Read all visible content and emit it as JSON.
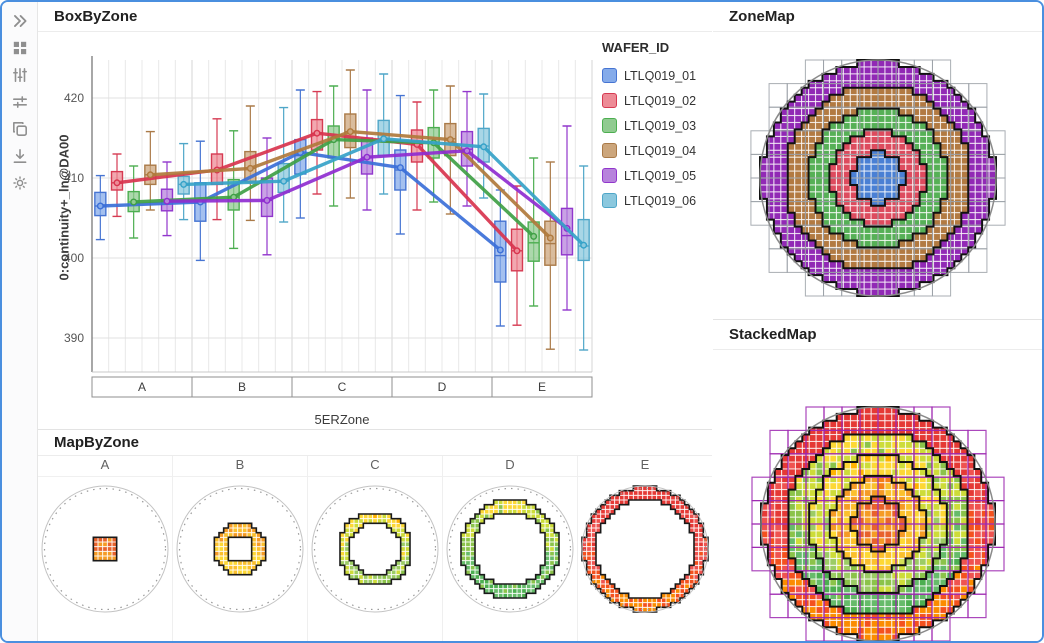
{
  "window": {
    "border_color": "#4a8fdf"
  },
  "toolbar": {
    "icons": [
      "expand",
      "dashboard-grid",
      "sliders-vertical",
      "sliders-horizontal",
      "copy",
      "download",
      "settings-gear"
    ]
  },
  "panels": {
    "box_by_zone": {
      "title": "BoxByZone"
    },
    "map_by_zone": {
      "title": "MapByZone"
    },
    "zone_map": {
      "title": "ZoneMap"
    },
    "stacked_map": {
      "title": "StackedMap"
    }
  },
  "chart_data": [
    {
      "id": "box_by_zone",
      "type": "box",
      "title": "BoxByZone",
      "xlabel": "5ERZone",
      "ylabel": "0:continuity+_ln@DA00",
      "categories": [
        "A",
        "B",
        "C",
        "D",
        "E"
      ],
      "yticks": [
        390,
        400,
        410,
        420
      ],
      "ylim": [
        385.5,
        425.5
      ],
      "grid": true,
      "legend_title": "WAFER_ID",
      "legend_position": "right",
      "series": [
        {
          "name": "LTLQ019_01",
          "fill": "#85ABEA",
          "stroke": "#4674D2",
          "line": "#3B6FD8",
          "boxes": [
            [
              402.3,
              405.3,
              406.5,
              408.2,
              410.3
            ],
            [
              399.7,
              404.6,
              406.9,
              409.4,
              414.6
            ],
            [
              405.0,
              410.5,
              412.8,
              414.8,
              421.0
            ],
            [
              403.0,
              408.5,
              411.0,
              413.5,
              420.3
            ],
            [
              391.5,
              397.0,
              400.3,
              404.6,
              408.5
            ]
          ],
          "means": [
            406.5,
            407.0,
            413.2,
            411.3,
            401.0
          ]
        },
        {
          "name": "LTLQ019_02",
          "fill": "#ED8B96",
          "stroke": "#D63A52",
          "line": "#D8344E",
          "boxes": [
            [
              405.2,
              408.5,
              409.4,
              410.8,
              413.0
            ],
            [
              404.8,
              409.2,
              410.9,
              413.0,
              417.4
            ],
            [
              408.0,
              413.5,
              415.6,
              417.3,
              420.8
            ],
            [
              406.0,
              412.0,
              414.2,
              416.0,
              419.5
            ],
            [
              391.6,
              398.4,
              400.9,
              403.6,
              409.0
            ]
          ],
          "means": [
            409.4,
            411.0,
            415.6,
            414.2,
            400.9
          ]
        },
        {
          "name": "LTLQ019_03",
          "fill": "#90CB90",
          "stroke": "#4CAE50",
          "line": "#3FA045",
          "boxes": [
            [
              402.5,
              405.8,
              407.0,
              408.3,
              411.5
            ],
            [
              401.2,
              406.0,
              407.6,
              409.8,
              415.9
            ],
            [
              406.5,
              412.5,
              414.8,
              416.5,
              421.5
            ],
            [
              407.0,
              412.5,
              414.5,
              416.3,
              421.0
            ],
            [
              394.0,
              399.6,
              401.9,
              404.5,
              412.5
            ]
          ],
          "means": [
            407.0,
            407.6,
            414.8,
            414.4,
            402.7
          ]
        },
        {
          "name": "LTLQ019_04",
          "fill": "#CCA67C",
          "stroke": "#AA7A48",
          "line": "#B0793C",
          "boxes": [
            [
              406.0,
              409.2,
              410.4,
              411.6,
              415.8
            ],
            [
              404.7,
              409.5,
              411.2,
              413.3,
              419.0
            ],
            [
              407.5,
              413.8,
              415.8,
              418.0,
              423.5
            ],
            [
              405.5,
              412.8,
              414.9,
              416.8,
              421.5
            ],
            [
              388.6,
              399.1,
              401.8,
              404.6,
              412.0
            ]
          ],
          "means": [
            410.4,
            411.2,
            415.8,
            414.8,
            402.5
          ]
        },
        {
          "name": "LTLQ019_05",
          "fill": "#B783DC",
          "stroke": "#9136CC",
          "line": "#8F2CD0",
          "boxes": [
            [
              402.8,
              405.9,
              407.1,
              408.6,
              412.0
            ],
            [
              400.4,
              405.2,
              407.2,
              410.0,
              415.0
            ],
            [
              406.0,
              410.5,
              412.6,
              415.0,
              421.0
            ],
            [
              406.5,
              411.5,
              413.6,
              415.8,
              420.8
            ],
            [
              393.5,
              400.4,
              402.8,
              406.2,
              416.5
            ]
          ],
          "means": [
            407.1,
            407.2,
            412.6,
            413.4,
            403.7
          ]
        },
        {
          "name": "LTLQ019_06",
          "fill": "#8BC8DE",
          "stroke": "#4FA6C8",
          "line": "#35A2C8",
          "boxes": [
            [
              404.8,
              408.0,
              409.2,
              410.2,
              414.3
            ],
            [
              404.5,
              408.2,
              409.6,
              411.8,
              418.8
            ],
            [
              408.0,
              412.8,
              414.9,
              417.2,
              423.0
            ],
            [
              407.5,
              412.0,
              414.0,
              416.2,
              420.5
            ],
            [
              388.5,
              399.7,
              401.5,
              404.8,
              411.5
            ]
          ],
          "means": [
            409.2,
            409.6,
            414.9,
            413.9,
            401.6
          ]
        }
      ]
    },
    {
      "id": "zone_map",
      "type": "heatmap",
      "subtype": "wafer-zone-map",
      "title": "ZoneMap",
      "zones": [
        {
          "name": "A",
          "outer_radius_frac": 0.21,
          "color": "#4a80d4"
        },
        {
          "name": "B",
          "outer_radius_frac": 0.4,
          "color": "#dd4b5e"
        },
        {
          "name": "C",
          "outer_radius_frac": 0.585,
          "color": "#56b056"
        },
        {
          "name": "D",
          "outer_radius_frac": 0.785,
          "color": "#b27a42"
        },
        {
          "name": "E",
          "outer_radius_frac": 1.0,
          "color": "#9129b5"
        }
      ],
      "shot_grid_color": "#9aa0a6",
      "boundary_color": "#111111"
    },
    {
      "id": "stacked_map",
      "type": "heatmap",
      "subtype": "wafer-heat-map",
      "title": "StackedMap",
      "zone_palettes": {
        "A": [
          "#ef7a2a",
          "#f59b25",
          "#e8622c",
          "#f59b25",
          "#f0a63c"
        ],
        "B": [
          "#f57f17",
          "#f59b25",
          "#fbc02d",
          "#fdd835",
          "#d4e157"
        ],
        "C": [
          "#ffb300",
          "#fdd835",
          "#cddc39",
          "#9ccc65",
          "#8bc34a"
        ],
        "D": [
          "#fdd835",
          "#cddc39",
          "#8bc34a",
          "#66bb6a",
          "#4caf50"
        ],
        "E": [
          "#e53935",
          "#e53935",
          "#ef5350",
          "#f4511e",
          "#fb8c00"
        ]
      },
      "shot_grid_color": "#9c27b0",
      "boundary_color": "#111111"
    },
    {
      "id": "map_by_zone",
      "type": "heatmap",
      "subtype": "wafer-small-multiples",
      "title": "MapByZone",
      "categories": [
        "A",
        "B",
        "C",
        "D",
        "E"
      ],
      "zone_palettes": {
        "A": [
          "#ef7a2a",
          "#f59b25",
          "#e8622c",
          "#f59b25",
          "#f0a63c"
        ],
        "B": [
          "#f57f17",
          "#f59b25",
          "#fbc02d",
          "#fdd835",
          "#d4e157"
        ],
        "C": [
          "#ffb300",
          "#fdd835",
          "#cddc39",
          "#9ccc65",
          "#8bc34a"
        ],
        "D": [
          "#fdd835",
          "#cddc39",
          "#8bc34a",
          "#66bb6a",
          "#4caf50"
        ],
        "E": [
          "#e53935",
          "#e53935",
          "#ef5350",
          "#f4511e",
          "#fb8c00"
        ]
      },
      "boundary_color": "#1a1a1a"
    }
  ]
}
